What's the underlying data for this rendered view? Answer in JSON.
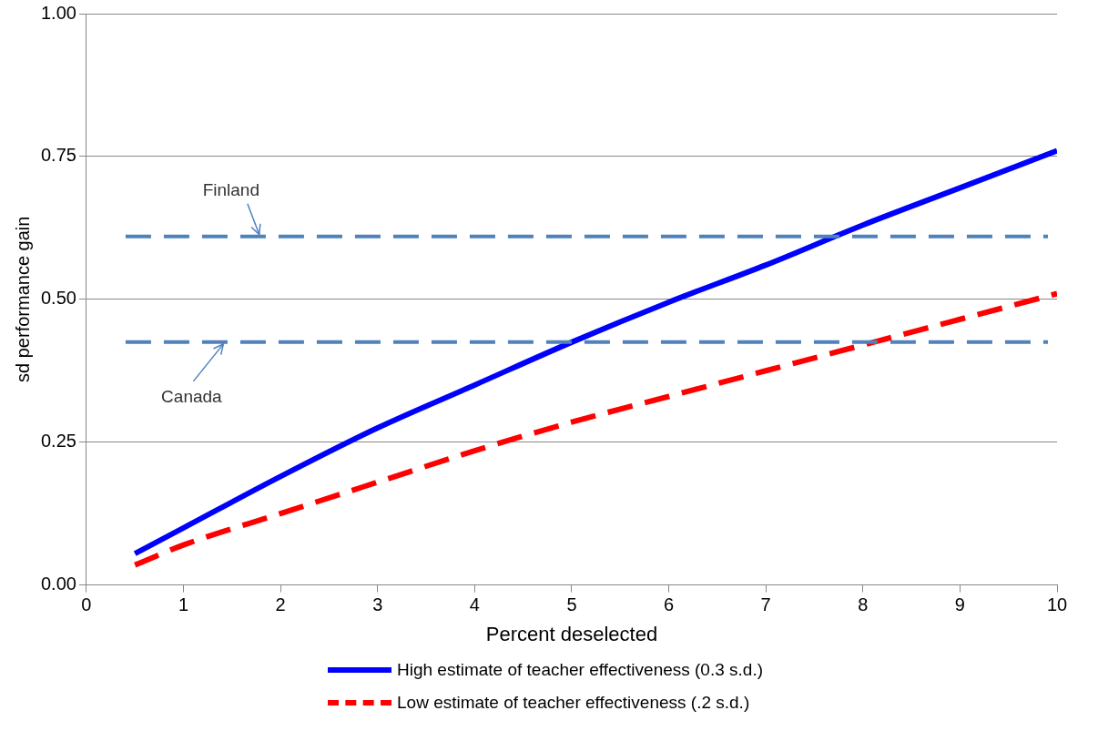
{
  "chart_data": {
    "type": "line",
    "xlabel": "Percent deselected",
    "ylabel": "sd performance gain",
    "x": [
      0.5,
      1,
      2,
      3,
      4,
      5,
      6,
      7,
      8,
      9,
      10
    ],
    "series": [
      {
        "name": "High estimate of teacher effectiveness (0.3 s.d.)",
        "color": "#0000ff",
        "line_style": "solid",
        "values": [
          0.055,
          0.1,
          0.19,
          0.275,
          0.35,
          0.425,
          0.495,
          0.56,
          0.63,
          0.695,
          0.76
        ]
      },
      {
        "name": "Low estimate of teacher effectiveness (.2 s.d.)",
        "color": "#ff0000",
        "line_style": "dashed",
        "values": [
          0.035,
          0.07,
          0.125,
          0.18,
          0.235,
          0.285,
          0.33,
          0.375,
          0.42,
          0.465,
          0.51
        ]
      }
    ],
    "ref_lines": [
      {
        "axis": "y",
        "value": 0.61,
        "color": "#4f81bd",
        "line_style": "dashed"
      },
      {
        "axis": "y",
        "value": 0.425,
        "color": "#4f81bd",
        "line_style": "dashed"
      }
    ],
    "annotations": [
      {
        "text": "Finland",
        "x": 1.8,
        "y": 0.61
      },
      {
        "text": "Canada",
        "x": 1.43,
        "y": 0.425
      }
    ],
    "xlim": [
      0,
      10
    ],
    "xticks": [
      0,
      1,
      2,
      3,
      4,
      5,
      6,
      7,
      8,
      9,
      10
    ],
    "ylim": [
      0,
      1
    ],
    "yticks": [
      {
        "value": 0,
        "label": "0.00"
      },
      {
        "value": 0.25,
        "label": "0.25"
      },
      {
        "value": 0.5,
        "label": "0.50"
      },
      {
        "value": 0.75,
        "label": "0.75"
      },
      {
        "value": 1,
        "label": "1.00"
      }
    ],
    "grid": "y",
    "legend": "bottom",
    "marker": "none"
  }
}
